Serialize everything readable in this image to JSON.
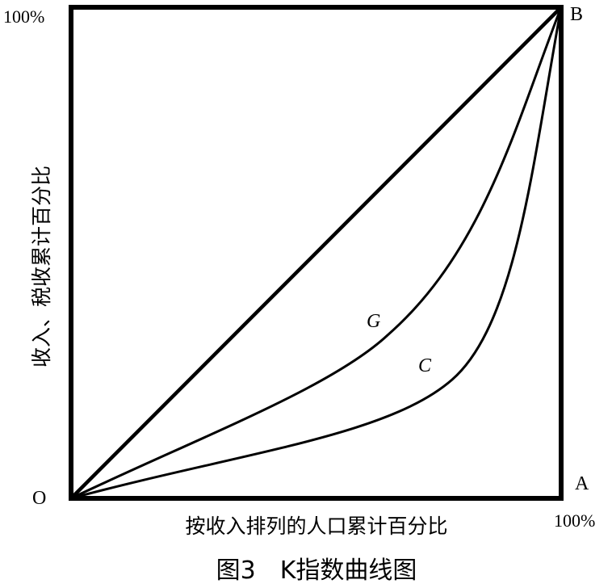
{
  "corner_labels": {
    "top_left": "100%",
    "top_right": "B",
    "bottom_left": "O",
    "bottom_right": "A",
    "bottom_right_pct": "100%"
  },
  "axis_labels": {
    "x": "按收入排列的人口累计百分比",
    "y": "收入、税收累计百分比"
  },
  "curve_labels": {
    "g": "G",
    "c": "C"
  },
  "caption": "图3　K指数曲线图",
  "colors": {
    "stroke": "#000000",
    "background": "#ffffff"
  }
}
